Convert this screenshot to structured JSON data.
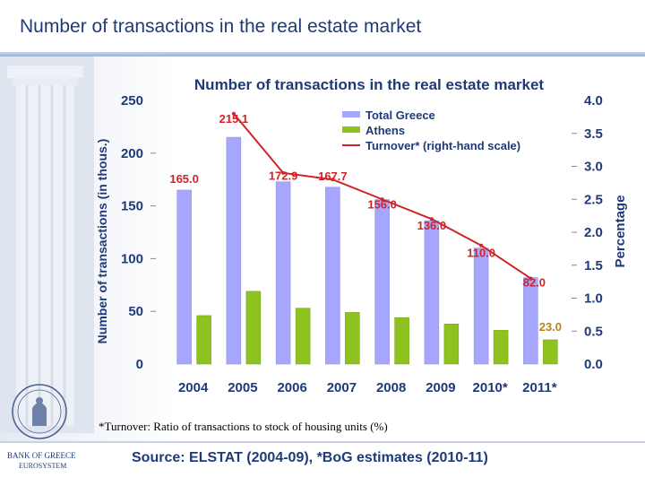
{
  "slide": {
    "title": "Number of transactions in the real estate market",
    "footnote": "*Turnover: Ratio of transactions to stock of housing units (%)",
    "source": "Source: ELSTAT (2004-09), *BoG estimates (2010-11)",
    "bank_name": "BANK OF GREECE",
    "eurosystem": "EUROSYSTEM"
  },
  "colors": {
    "title": "#1f3a78",
    "total_bar": "#a6a6ff",
    "athens_bar": "#8dc21f",
    "turnover_line": "#d0232a",
    "total_label": "#d0232a",
    "last_label": "#b5831a"
  },
  "chart_data": {
    "type": "bar",
    "title": "Number of transactions in the real estate market",
    "ylabel": "Number of transactions (in thous.)",
    "y2label": "Percentage",
    "ylim": [
      0,
      250
    ],
    "y2lim": [
      0,
      4
    ],
    "yticks": [
      "0",
      "50",
      "100",
      "150",
      "200",
      "250"
    ],
    "y2ticks": [
      "0.0",
      "0.5",
      "1.0",
      "1.5",
      "2.0",
      "2.5",
      "3.0",
      "3.5",
      "4.0"
    ],
    "categories": [
      "2004",
      "2005",
      "2006",
      "2007",
      "2008",
      "2009",
      "2010*",
      "2011*"
    ],
    "series": [
      {
        "name": "Total Greece",
        "values": [
          165.0,
          215.1,
          172.9,
          167.7,
          156.0,
          136.0,
          110.0,
          82.0
        ],
        "labels": [
          "165.0",
          "215.1",
          "172.9",
          "167.7",
          "156.0",
          "136.0",
          "110.0",
          "82.0"
        ]
      },
      {
        "name": "Athens",
        "values": [
          46,
          69,
          53,
          49,
          44,
          38,
          32,
          23.0
        ],
        "labels": [
          "",
          "",
          "",
          "",
          "",
          "",
          "",
          "23.0"
        ]
      },
      {
        "name": "Turnover* (right-hand scale)",
        "axis": "right",
        "values": [
          null,
          3.8,
          2.9,
          2.8,
          2.5,
          2.2,
          1.8,
          1.3
        ]
      }
    ],
    "legend": "top-right"
  }
}
